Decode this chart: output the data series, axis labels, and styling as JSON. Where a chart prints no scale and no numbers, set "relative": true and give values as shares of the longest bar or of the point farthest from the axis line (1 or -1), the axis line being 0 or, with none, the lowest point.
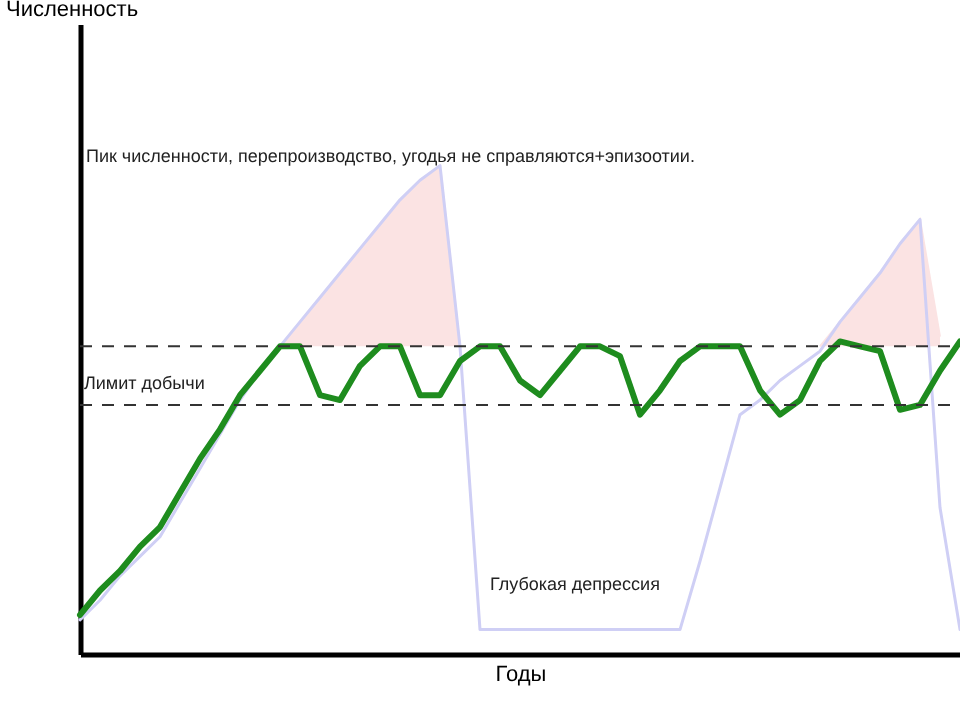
{
  "chart_data": {
    "type": "line",
    "relative": true,
    "xlabel": "Годы",
    "categories": [
      null,
      null,
      null,
      null,
      null,
      null,
      null,
      null,
      null,
      null,
      null,
      null,
      null,
      null,
      null,
      null,
      null,
      null,
      null,
      null,
      null,
      null,
      null,
      null,
      null,
      null,
      null,
      null,
      null,
      null,
      null,
      null,
      null,
      null,
      null,
      null,
      null,
      null,
      null,
      null,
      null,
      null,
      null,
      null,
      null
    ],
    "series": [
      {
        "type": "area",
        "color": "#fbe3e3",
        "values": [
          null,
          null,
          null,
          null,
          null,
          null,
          null,
          null,
          null,
          null,
          0.63,
          0.68,
          0.73,
          0.78,
          0.83,
          0.88,
          0.93,
          0.97,
          1,
          0.63,
          null,
          null,
          null,
          null,
          null,
          null,
          null,
          null,
          null,
          null,
          null,
          null,
          null,
          null,
          null,
          null,
          null,
          0.63,
          0.68,
          0.73,
          0.78,
          0.84,
          0.89,
          0.65,
          null
        ]
      },
      {
        "type": "line",
        "color": "#cfcff5",
        "values": [
          0.07,
          0.11,
          0.16,
          0.2,
          0.24,
          0.31,
          0.38,
          0.45,
          0.52,
          0.58,
          0.63,
          0.68,
          0.73,
          0.78,
          0.83,
          0.88,
          0.93,
          0.97,
          1,
          0.63,
          0.05,
          0.05,
          0.05,
          0.05,
          0.05,
          0.05,
          0.05,
          0.05,
          0.05,
          0.05,
          0.05,
          0.19,
          0.34,
          0.49,
          0.52,
          0.56,
          0.59,
          0.62,
          0.68,
          0.73,
          0.78,
          0.84,
          0.89,
          0.3,
          0.05
        ]
      },
      {
        "color": "#1e8c1e",
        "values": [
          0.08,
          0.13,
          0.17,
          0.22,
          0.26,
          0.33,
          0.4,
          0.46,
          0.53,
          0.58,
          0.63,
          0.63,
          0.53,
          0.52,
          0.59,
          0.63,
          0.63,
          0.53,
          0.53,
          0.6,
          0.63,
          0.63,
          0.56,
          0.53,
          0.58,
          0.63,
          0.63,
          0.61,
          0.49,
          0.54,
          0.6,
          0.63,
          0.63,
          0.63,
          0.54,
          0.49,
          0.52,
          0.6,
          0.64,
          0.63,
          0.62,
          0.5,
          0.51,
          0.58,
          0.64
        ]
      }
    ],
    "ref_lines": [
      {
        "axis": "y",
        "value": 0.63,
        "color": "#333333",
        "line_style": "dashed"
      },
      {
        "axis": "y",
        "value": 0.51,
        "label": "Лимит добычи",
        "color": "#333333",
        "line_style": "dashed"
      }
    ],
    "annotations": [
      "Численность",
      "Пик численности, перепроизводство,    угодья не справляются+эпизоотии.",
      "Глубокая депрессия"
    ]
  }
}
